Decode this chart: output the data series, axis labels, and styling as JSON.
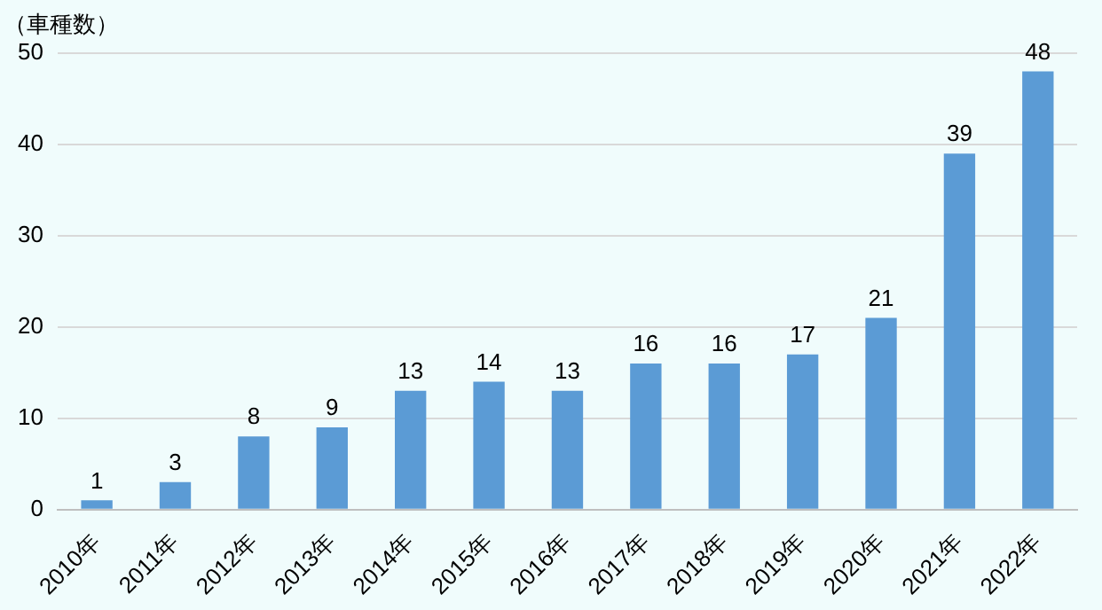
{
  "chart_data": {
    "type": "bar",
    "ylabel": "（車種数）",
    "categories": [
      "2010年",
      "2011年",
      "2012年",
      "2013年",
      "2014年",
      "2015年",
      "2016年",
      "2017年",
      "2018年",
      "2019年",
      "2020年",
      "2021年",
      "2022年"
    ],
    "values": [
      1,
      3,
      8,
      9,
      13,
      14,
      13,
      16,
      16,
      17,
      21,
      39,
      48
    ],
    "color": "#5b9bd5",
    "ylim": [
      0,
      50
    ],
    "yticks": [
      0,
      10,
      20,
      30,
      40,
      50
    ],
    "grid": "y",
    "data_labels": true
  }
}
